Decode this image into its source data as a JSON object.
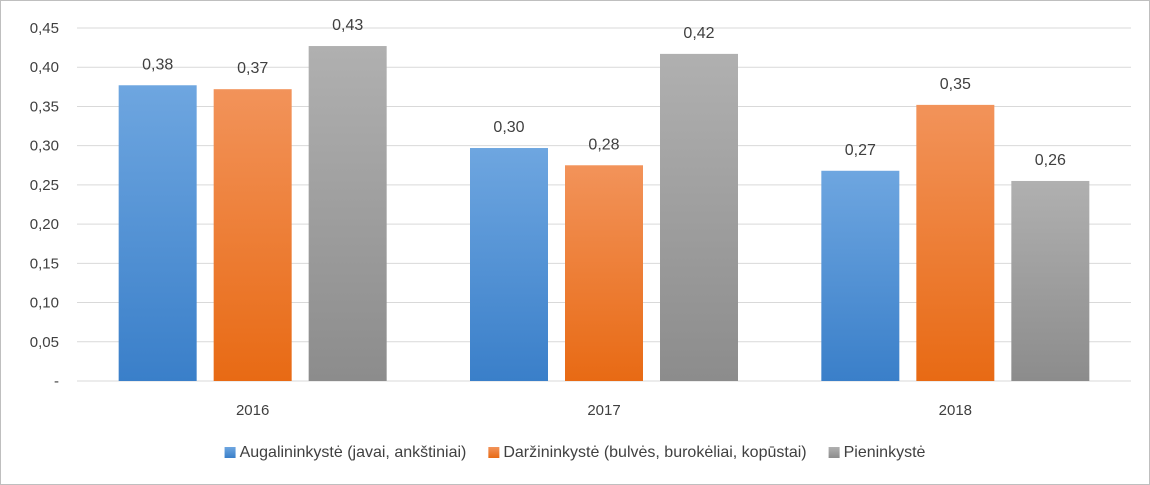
{
  "chart_data": {
    "type": "bar",
    "title": "",
    "xlabel": "",
    "ylabel": "",
    "categories": [
      "2016",
      "2017",
      "2018"
    ],
    "series": [
      {
        "name": "Augalininkystė (javai, ankštiniai)",
        "values": [
          0.377,
          0.297,
          0.268
        ],
        "labels": [
          "0,38",
          "0,30",
          "0,27"
        ],
        "color": "#4a8fd6"
      },
      {
        "name": "Daržininkystė (bulvės, burokėliai, kopūstai)",
        "values": [
          0.372,
          0.275,
          0.352
        ],
        "labels": [
          "0,37",
          "0,28",
          "0,35"
        ],
        "color": "#f07c2d"
      },
      {
        "name": "Pieninkystė",
        "values": [
          0.427,
          0.417,
          0.255
        ],
        "labels": [
          "0,43",
          "0,42",
          "0,26"
        ],
        "color": "#a0a0a0"
      }
    ],
    "ylim": [
      0,
      0.45
    ],
    "y_ticks": [
      0,
      0.05,
      0.1,
      0.15,
      0.2,
      0.25,
      0.3,
      0.35,
      0.4,
      0.45
    ],
    "y_tick_labels": [
      "-",
      "0,05",
      "0,10",
      "0,15",
      "0,20",
      "0,25",
      "0,30",
      "0,35",
      "0,40",
      "0,45"
    ],
    "grid": true,
    "legend_position": "bottom"
  }
}
